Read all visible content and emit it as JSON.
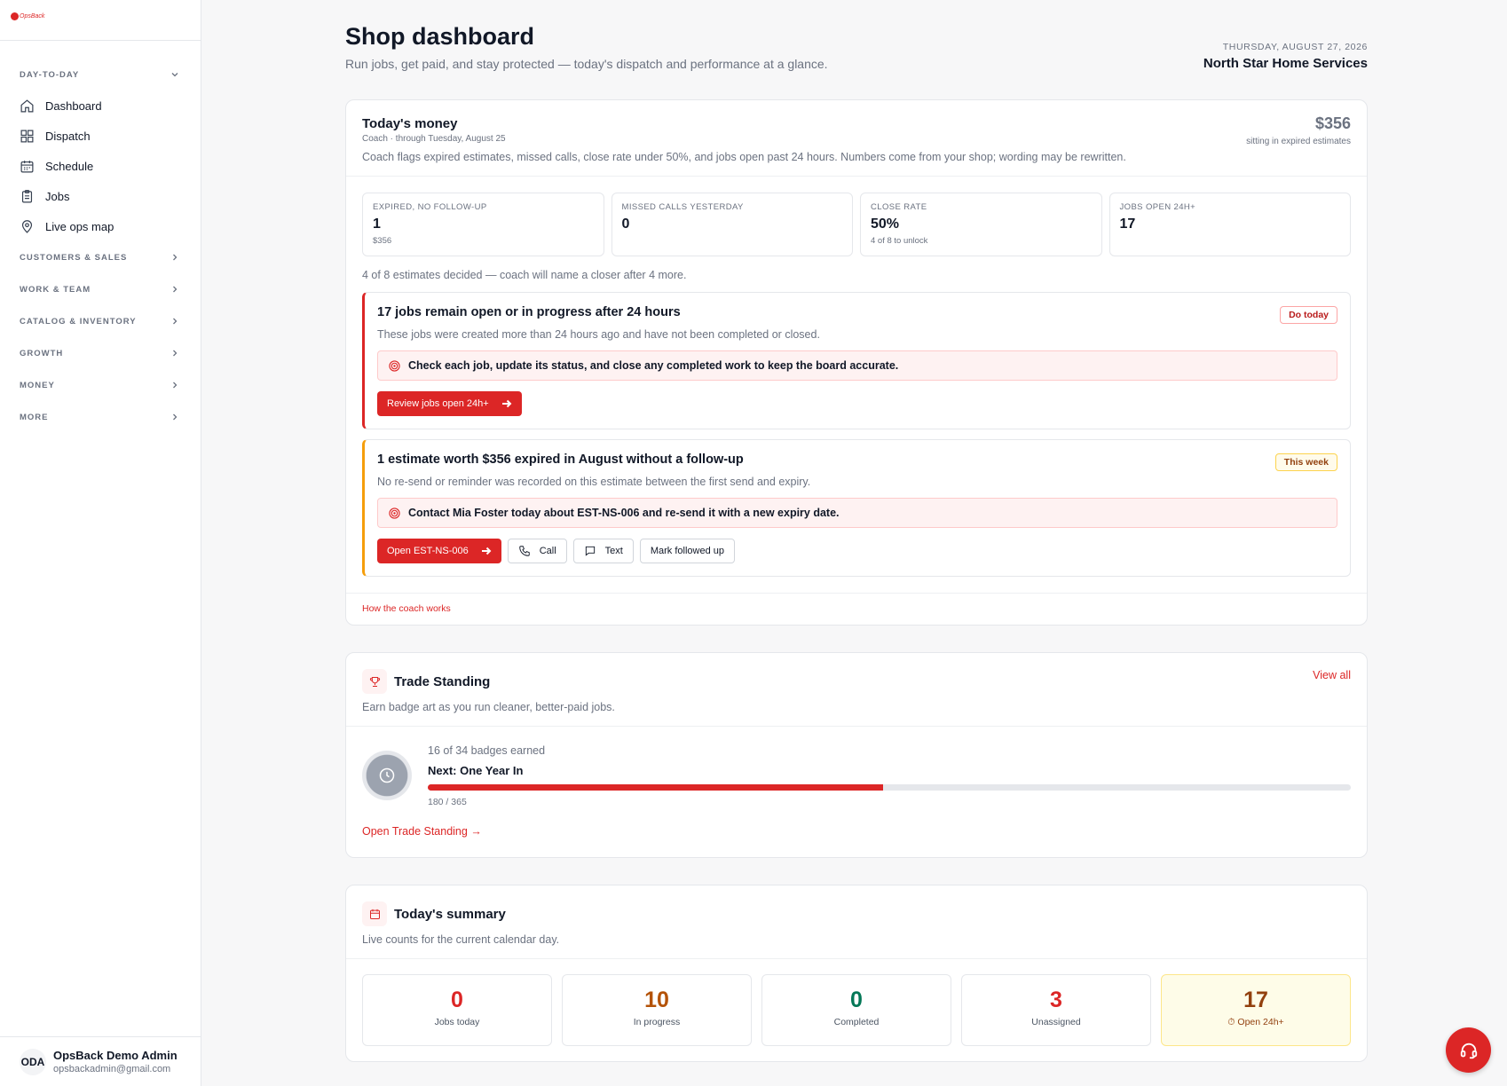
{
  "sidebar": {
    "logo_text": "OpsBack",
    "sections": [
      {
        "label": "DAY-TO-DAY"
      },
      {
        "label": "CUSTOMERS & SALES"
      },
      {
        "label": "WORK & TEAM"
      },
      {
        "label": "CATALOG & INVENTORY"
      },
      {
        "label": "GROWTH"
      },
      {
        "label": "MONEY"
      },
      {
        "label": "MORE"
      }
    ],
    "items": [
      {
        "label": "Dashboard",
        "icon": "home-icon"
      },
      {
        "label": "Dispatch",
        "icon": "grid-icon"
      },
      {
        "label": "Schedule",
        "icon": "calendar-icon"
      },
      {
        "label": "Jobs",
        "icon": "clipboard-icon"
      },
      {
        "label": "Live ops map",
        "icon": "map-pin-icon"
      }
    ],
    "user": {
      "initials": "ODA",
      "name": "OpsBack Demo Admin",
      "email": "opsbackadmin@gmail.com"
    }
  },
  "header": {
    "title": "Shop dashboard",
    "subtitle": "Run jobs, get paid, and stay protected — today's dispatch and performance at a glance.",
    "date": "THURSDAY, AUGUST 27, 2026",
    "org": "North Star Home Services"
  },
  "money": {
    "title": "Today's money",
    "meta": "Coach · through Tuesday, August 25",
    "desc": "Coach flags expired estimates, missed calls, close rate under 50%, and jobs open past 24 hours. Numbers come from your shop; wording may be rewritten.",
    "amount": "$356",
    "amount_label": "sitting in expired estimates",
    "stats": [
      {
        "label": "EXPIRED, NO FOLLOW-UP",
        "value": "1",
        "sub": "$356"
      },
      {
        "label": "MISSED CALLS YESTERDAY",
        "value": "0",
        "sub": ""
      },
      {
        "label": "CLOSE RATE",
        "value": "50%",
        "sub": "4 of 8 to unlock"
      },
      {
        "label": "JOBS OPEN 24H+",
        "value": "17",
        "sub": ""
      }
    ],
    "decided": "4 of 8 estimates decided — coach will name a closer after 4 more.",
    "alerts": [
      {
        "title": "17 jobs remain open or in progress after 24 hours",
        "badge": "Do today",
        "desc": "These jobs were created more than 24 hours ago and have not been completed or closed.",
        "action": "Check each job, update its status, and close any completed work to keep the board accurate.",
        "primary": "Review jobs open 24h+"
      },
      {
        "title": "1 estimate worth $356 expired in August without a follow-up",
        "badge": "This week",
        "desc": "No re-send or reminder was recorded on this estimate between the first send and expiry.",
        "action": "Contact Mia Foster today about EST-NS-006 and re-send it with a new expiry date.",
        "primary": "Open EST-NS-006",
        "call": "Call",
        "text": "Text",
        "mark": "Mark followed up"
      }
    ],
    "coach_link": "How the coach works"
  },
  "trade": {
    "title": "Trade Standing",
    "view_all": "View all",
    "desc": "Earn badge art as you run cleaner, better-paid jobs.",
    "earned": "16 of 34 badges earned",
    "next": "Next: One Year In",
    "progress": 0.493,
    "count": "180 / 365",
    "link": "Open Trade Standing"
  },
  "summary": {
    "title": "Today's summary",
    "desc": "Live counts for the current calendar day.",
    "tiles": [
      {
        "value": "0",
        "label": "Jobs today",
        "color": "#dc2626"
      },
      {
        "value": "10",
        "label": "In progress",
        "color": "#b45309"
      },
      {
        "value": "0",
        "label": "Completed",
        "color": "#047857"
      },
      {
        "value": "3",
        "label": "Unassigned",
        "color": "#dc2626"
      },
      {
        "value": "17",
        "label": "Open 24h+",
        "color": "#92400e"
      }
    ]
  },
  "colors": {
    "accent": "#dc2626",
    "amber": "#f59e0b"
  }
}
